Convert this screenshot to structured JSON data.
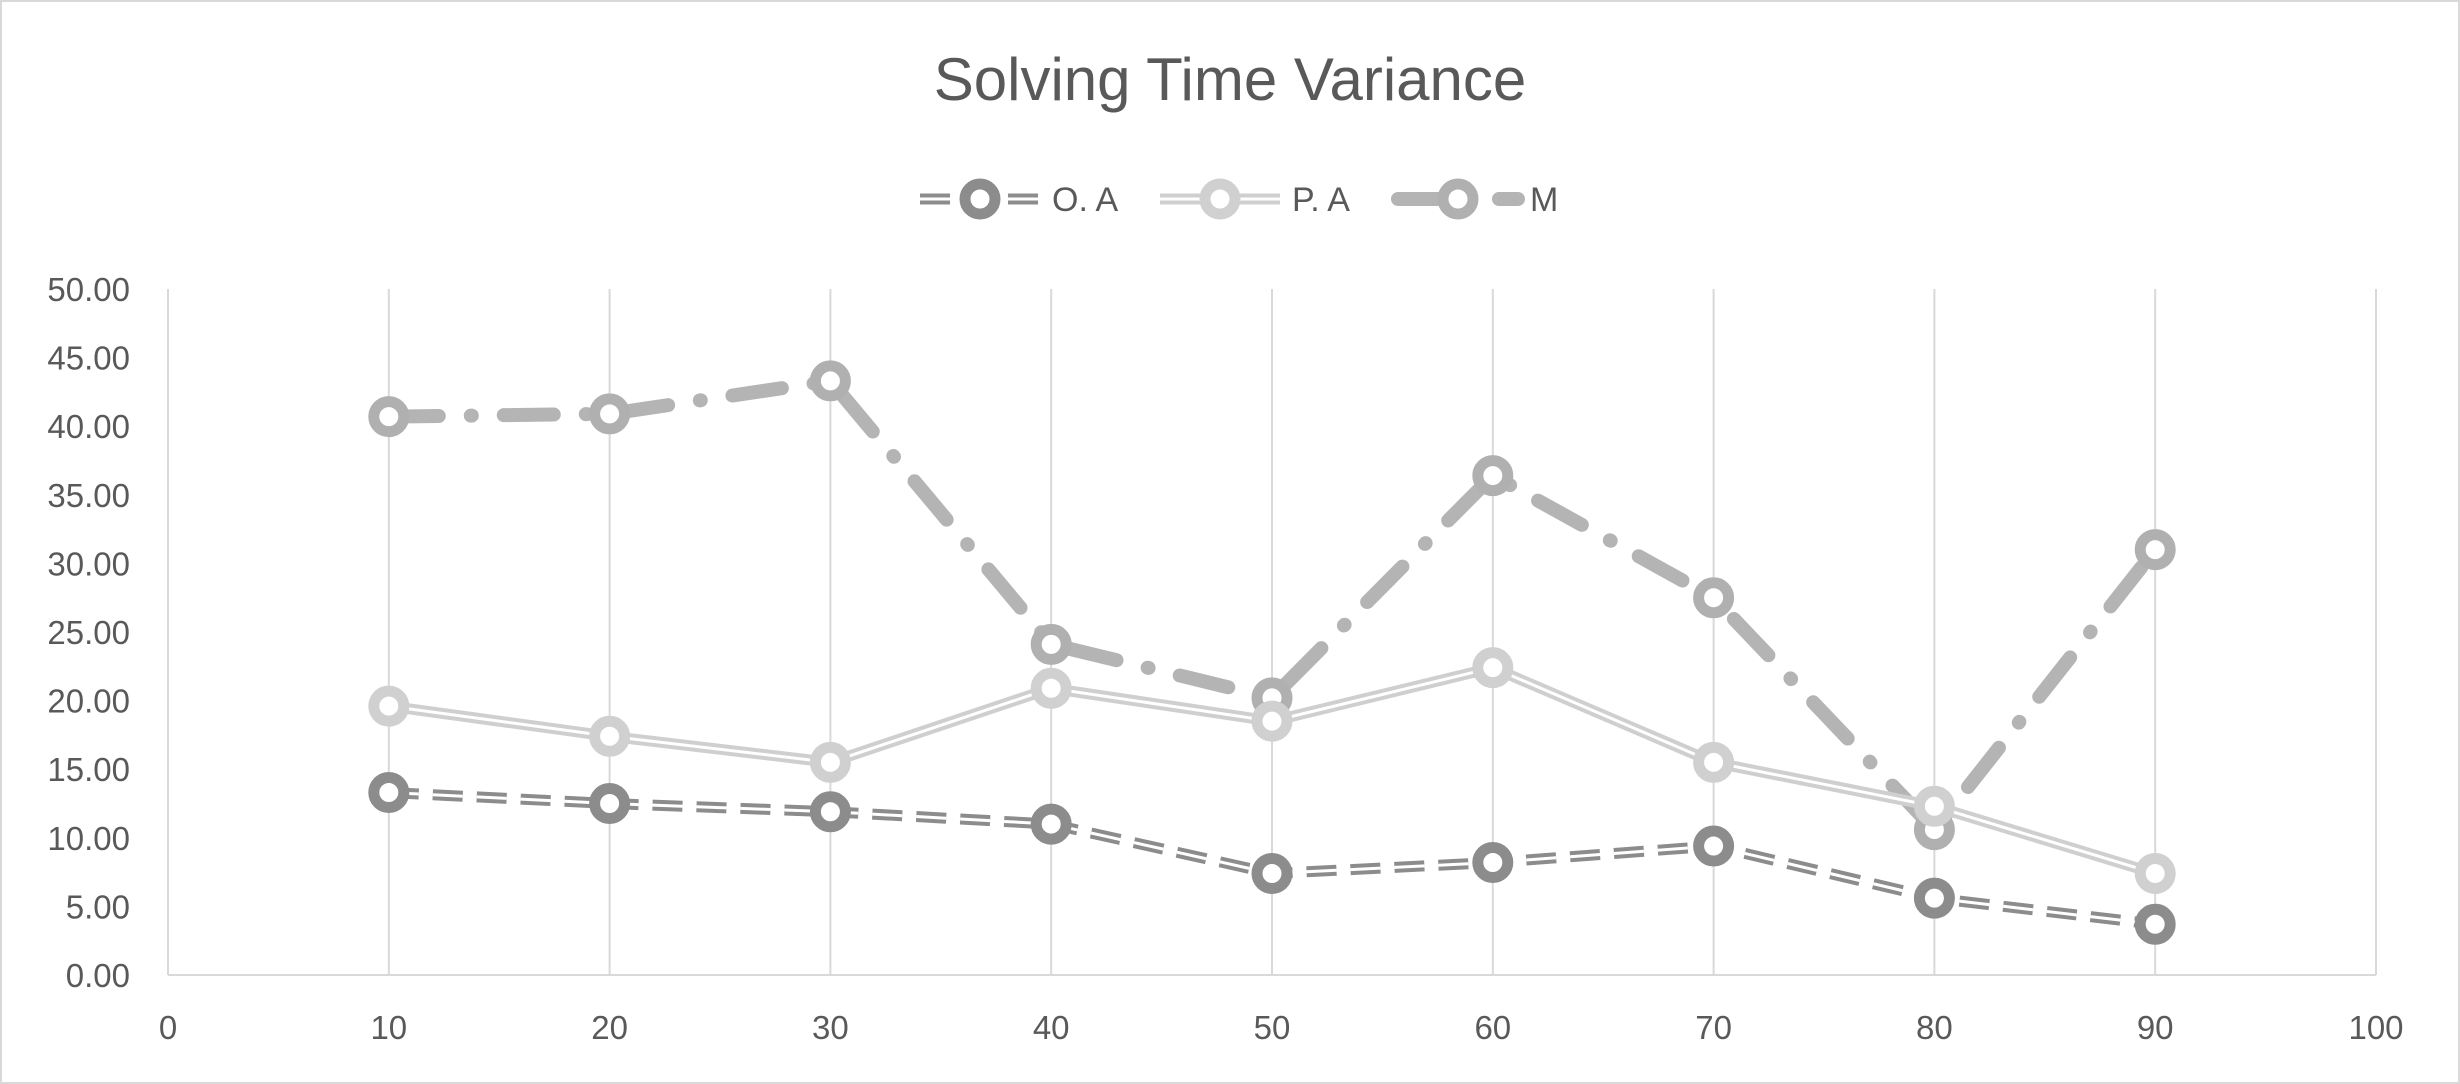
{
  "chart_data": {
    "type": "scatter",
    "title": "Solving Time Variance",
    "xlabel": "",
    "ylabel": "",
    "xlim": [
      0,
      100
    ],
    "ylim": [
      0,
      50
    ],
    "x_ticks": [
      "0",
      "10",
      "20",
      "30",
      "40",
      "50",
      "60",
      "70",
      "80",
      "90",
      "100"
    ],
    "y_ticks": [
      "0.00",
      "5.00",
      "10.00",
      "15.00",
      "20.00",
      "25.00",
      "30.00",
      "35.00",
      "40.00",
      "45.00",
      "50.00"
    ],
    "grid": "vertical",
    "legend_position": "top",
    "x": [
      10,
      20,
      30,
      40,
      50,
      60,
      70,
      80,
      90
    ],
    "series": [
      {
        "name": "O. A",
        "values": [
          13.3,
          12.5,
          11.9,
          11.0,
          7.4,
          8.2,
          9.4,
          5.6,
          3.7
        ],
        "color": "#8c8c8c",
        "style": "dashed-double"
      },
      {
        "name": "P. A",
        "values": [
          19.6,
          17.4,
          15.5,
          20.9,
          18.5,
          22.4,
          15.5,
          12.3,
          7.4
        ],
        "color": "#cfcfcf",
        "style": "solid-double"
      },
      {
        "name": "M",
        "values": [
          40.7,
          40.9,
          43.3,
          24.1,
          20.2,
          36.4,
          27.5,
          10.6,
          31.0
        ],
        "color": "#b4b4b4",
        "style": "dash-dot"
      }
    ]
  }
}
